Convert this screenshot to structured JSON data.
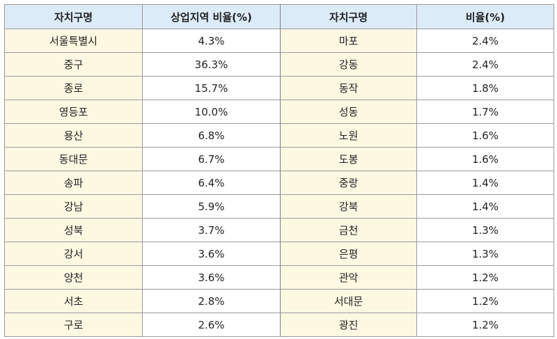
{
  "headers": {
    "district_left": "자치구명",
    "ratio_left": "상업지역 비율(%)",
    "district_right": "자치구명",
    "ratio_right": "비율(%)"
  },
  "rows": [
    {
      "left_name": "서울특별시",
      "left_value": "4.3%",
      "right_name": "마포",
      "right_value": "2.4%"
    },
    {
      "left_name": "중구",
      "left_value": "36.3%",
      "right_name": "강동",
      "right_value": "2.4%"
    },
    {
      "left_name": "종로",
      "left_value": "15.7%",
      "right_name": "동작",
      "right_value": "1.8%"
    },
    {
      "left_name": "영등포",
      "left_value": "10.0%",
      "right_name": "성동",
      "right_value": "1.7%"
    },
    {
      "left_name": "용산",
      "left_value": "6.8%",
      "right_name": "노원",
      "right_value": "1.6%"
    },
    {
      "left_name": "동대문",
      "left_value": "6.7%",
      "right_name": "도봉",
      "right_value": "1.6%"
    },
    {
      "left_name": "송파",
      "left_value": "6.4%",
      "right_name": "중랑",
      "right_value": "1.4%"
    },
    {
      "left_name": "강남",
      "left_value": "5.9%",
      "right_name": "강북",
      "right_value": "1.4%"
    },
    {
      "left_name": "성북",
      "left_value": "3.7%",
      "right_name": "금천",
      "right_value": "1.3%"
    },
    {
      "left_name": "강서",
      "left_value": "3.6%",
      "right_name": "은평",
      "right_value": "1.3%"
    },
    {
      "left_name": "양천",
      "left_value": "3.6%",
      "right_name": "관악",
      "right_value": "1.2%"
    },
    {
      "left_name": "서초",
      "left_value": "2.8%",
      "right_name": "서대문",
      "right_value": "1.2%"
    },
    {
      "left_name": "구로",
      "left_value": "2.6%",
      "right_name": "광진",
      "right_value": "1.2%"
    }
  ],
  "colors": {
    "header_bg": "#dcebf8",
    "name_bg": "#fdf8e2",
    "value_bg": "#ffffff",
    "border": "#9a9a9a"
  }
}
